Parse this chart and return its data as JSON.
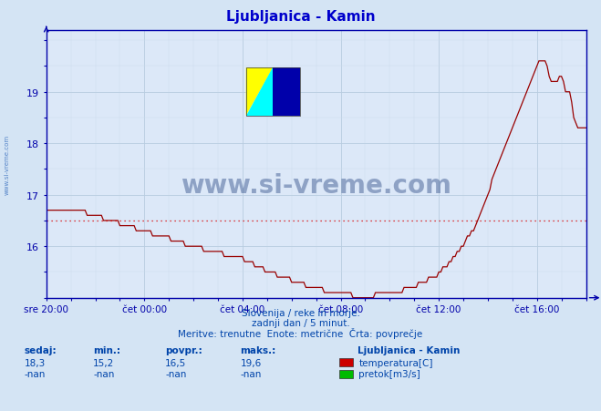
{
  "title": "Ljubljanica - Kamin",
  "bg_color": "#d4e4f4",
  "plot_bg_color": "#dce8f8",
  "grid_color_major": "#b8cce0",
  "grid_color_minor": "#ccdaec",
  "x_labels": [
    "sre 20:00",
    "čet 00:00",
    "čet 04:00",
    "čet 08:00",
    "čet 12:00",
    "čet 16:00"
  ],
  "x_ticks_pos": [
    0,
    48,
    96,
    144,
    192,
    240
  ],
  "y_min": 15.0,
  "y_max": 20.2,
  "y_ticks": [
    16,
    17,
    18,
    19
  ],
  "avg_value": 16.5,
  "line_color": "#990000",
  "avg_line_color": "#dd0000",
  "title_color": "#0000cc",
  "axis_color": "#0000aa",
  "text_color": "#0044aa",
  "subtitle_lines": [
    "Slovenija / reke in morje.",
    "zadnji dan / 5 minut.",
    "Meritve: trenutne  Enote: metrične  Črta: povprečje"
  ],
  "legend_title": "Ljubljanica - Kamin",
  "legend_items": [
    {
      "label": "temperatura[C]",
      "color": "#cc0000"
    },
    {
      "label": "pretok[m3/s]",
      "color": "#00bb00"
    }
  ],
  "stats_headers": [
    "sedaj:",
    "min.:",
    "povpr.:",
    "maks.:"
  ],
  "stats_temp": [
    "18,3",
    "15,2",
    "16,5",
    "19,6"
  ],
  "stats_flow": [
    "-nan",
    "-nan",
    "-nan",
    "-nan"
  ],
  "watermark": "www.si-vreme.com",
  "watermark_color": "#1a3a7a",
  "side_text": "www.si-vreme.com"
}
